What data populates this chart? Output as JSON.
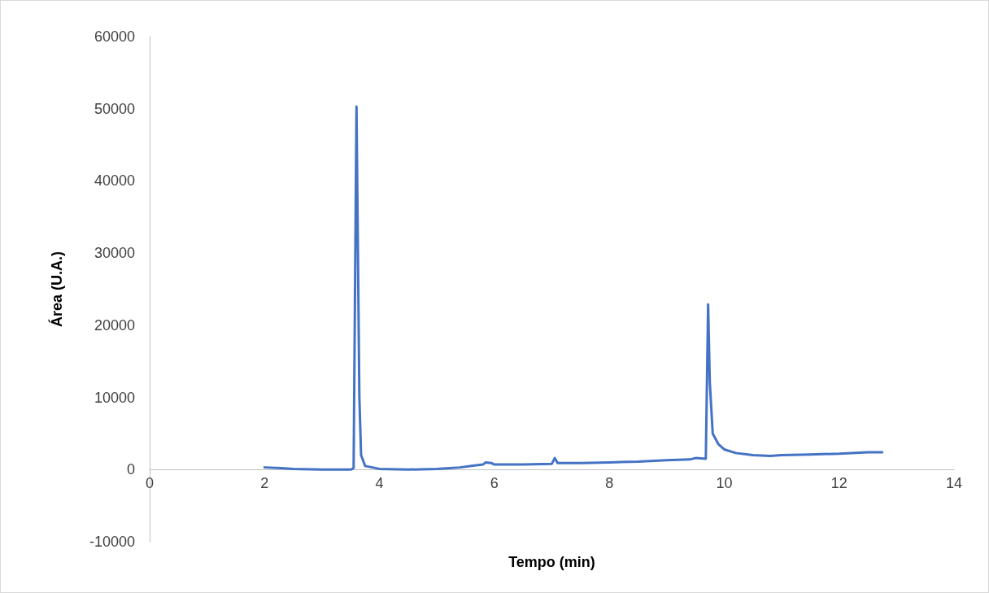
{
  "chart_data": {
    "type": "line",
    "xlabel": "Tempo (min)",
    "ylabel": "Área (U.A.)",
    "x": [
      2.0,
      2.3,
      2.5,
      3.0,
      3.5,
      3.55,
      3.6,
      3.65,
      3.68,
      3.75,
      4.0,
      4.5,
      5.0,
      5.4,
      5.6,
      5.8,
      5.85,
      5.95,
      6.0,
      6.5,
      7.0,
      7.05,
      7.1,
      7.5,
      8.0,
      8.5,
      9.0,
      9.4,
      9.5,
      9.68,
      9.72,
      9.75,
      9.8,
      9.9,
      10.0,
      10.2,
      10.5,
      10.8,
      11.0,
      11.5,
      12.0,
      12.5,
      12.75
    ],
    "series": [
      {
        "color": "#4472c4",
        "values": [
          300,
          200,
          100,
          0,
          0,
          200,
          50300,
          10000,
          2000,
          500,
          100,
          0,
          100,
          300,
          500,
          700,
          1000,
          900,
          700,
          700,
          800,
          1600,
          900,
          900,
          1000,
          1100,
          1300,
          1400,
          1600,
          1500,
          22900,
          12000,
          5000,
          3500,
          2800,
          2300,
          2000,
          1900,
          2000,
          2100,
          2200,
          2400,
          2400
        ]
      }
    ],
    "xlim": [
      0,
      14
    ],
    "xticks": [
      0,
      2,
      4,
      6,
      8,
      10,
      12,
      14
    ],
    "ylim": [
      -10000,
      60000
    ],
    "yticks": [
      -10000,
      0,
      10000,
      20000,
      30000,
      40000,
      50000,
      60000
    ],
    "marker": "none",
    "line_style": "solid"
  }
}
